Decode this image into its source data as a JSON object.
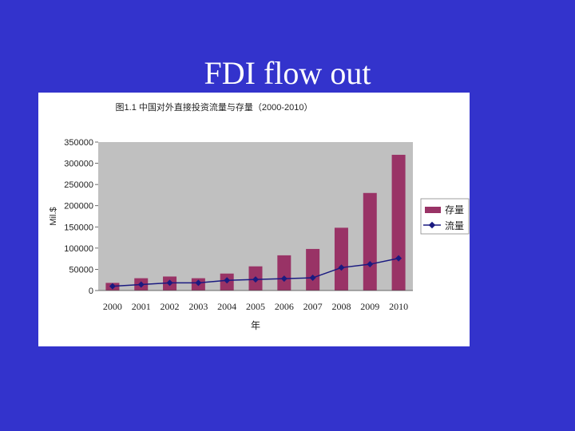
{
  "slide": {
    "title": "FDI flow out"
  },
  "chart_data": {
    "type": "bar",
    "title": "图1.1 中国对外直接投资流量与存量（2000-2010）",
    "xlabel": "年",
    "ylabel": "Mil.$",
    "ylim": [
      0,
      350000
    ],
    "yticks": [
      0,
      50000,
      100000,
      150000,
      200000,
      250000,
      300000,
      350000
    ],
    "categories": [
      "2000",
      "2001",
      "2002",
      "2003",
      "2004",
      "2005",
      "2006",
      "2007",
      "2008",
      "2009",
      "2010"
    ],
    "grid": false,
    "plot_background": "#c0c0c0",
    "legend_position": "right",
    "series": [
      {
        "name": "存量",
        "type": "bar",
        "color": "#993366",
        "values": [
          18000,
          29000,
          33000,
          29000,
          40000,
          57000,
          83000,
          98000,
          148000,
          230000,
          320000
        ]
      },
      {
        "name": "流量",
        "type": "line",
        "color": "#1a1a80",
        "values": [
          10000,
          14000,
          18000,
          18000,
          24000,
          26000,
          28000,
          30000,
          54000,
          62000,
          76000
        ]
      }
    ]
  }
}
